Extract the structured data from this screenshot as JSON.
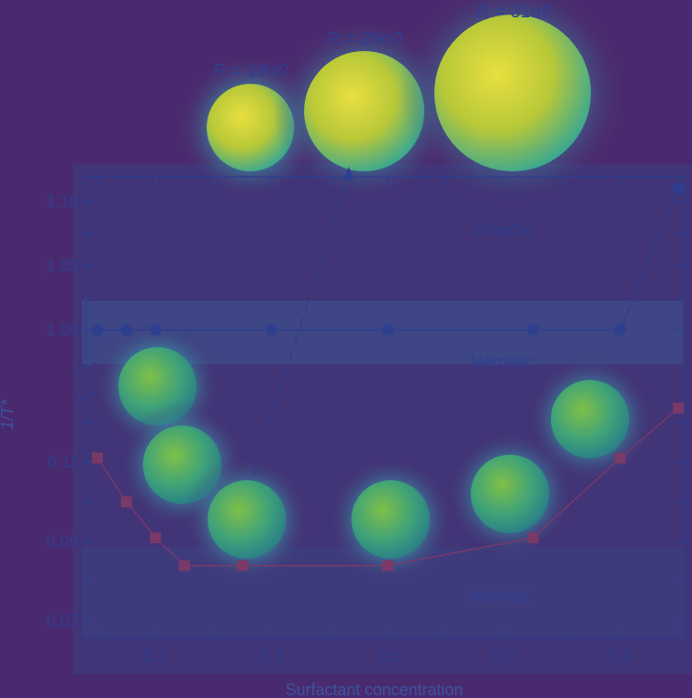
{
  "chart_data": {
    "type": "line",
    "xlabel": "Surfactant concentration",
    "ylabel": "1/T*",
    "x_ticks": [
      "0.1",
      "0.3",
      "0.5",
      "0.7",
      "0.9"
    ],
    "y_ticks_upper": [
      "1.10",
      "1.05",
      "1.00"
    ],
    "y_ticks_lower": [
      "0.11",
      "0.09",
      "0.07"
    ],
    "xlim": [
      0,
      1
    ],
    "ylim_upper": [
      0.97,
      1.12
    ],
    "ylim_lower": [
      0.065,
      0.124
    ],
    "broken_y_axis": true,
    "regions": [
      "Smectic",
      "Nematic",
      "Isotropic"
    ],
    "series": [
      {
        "marker": "circle",
        "color": "#2f3f8f",
        "x": [
          0.0,
          0.05,
          0.1,
          0.3,
          0.5,
          0.75,
          0.9,
          1.0
        ],
        "y": [
          1.0,
          1.0,
          1.0,
          1.0,
          1.0,
          1.0,
          1.0,
          1.11
        ]
      },
      {
        "marker": "square",
        "color": "#7a3a68",
        "x": [
          0.0,
          0.05,
          0.1,
          0.15,
          0.25,
          0.5,
          0.75,
          0.9,
          1.0
        ],
        "y": [
          0.111,
          0.1,
          0.091,
          0.084,
          0.084,
          0.084,
          0.091,
          0.111,
          0.1235
        ]
      }
    ],
    "annotations": [
      {
        "label": "R = 18σ0"
      },
      {
        "label": "R = 25σ0"
      },
      {
        "label": "R = 31σ0"
      }
    ]
  }
}
